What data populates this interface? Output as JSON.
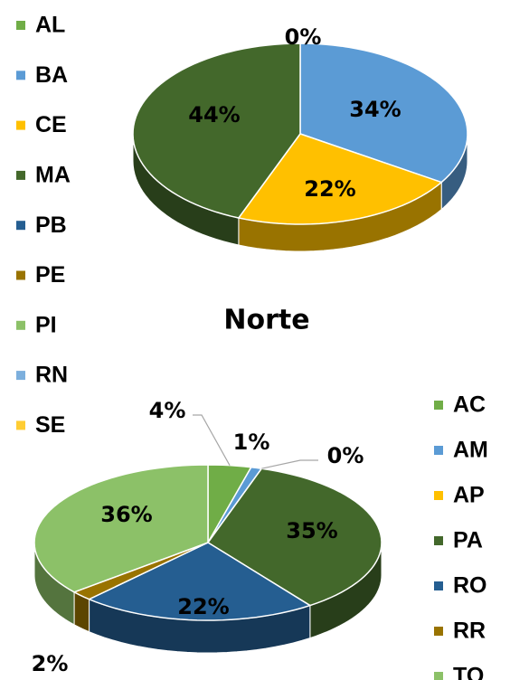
{
  "chart_data": [
    {
      "type": "pie",
      "categories": [
        "AL",
        "BA",
        "CE",
        "MA",
        "PB",
        "PE",
        "PI",
        "RN",
        "SE"
      ],
      "values": [
        0,
        34,
        22,
        44,
        null,
        null,
        null,
        null,
        null
      ],
      "value_labels": [
        "0%",
        "34%",
        "22%",
        "44%",
        null,
        null,
        null,
        null,
        null
      ],
      "colors": [
        "#70ad47",
        "#5b9bd5",
        "#ffc000",
        "#43682b",
        "#255e91",
        "#997300",
        "#8cc168",
        "#7cafdd",
        "#ffcd33"
      ],
      "legend": "left"
    },
    {
      "type": "pie",
      "title": "Norte",
      "categories": [
        "AC",
        "AM",
        "AP",
        "PA",
        "RO",
        "RR",
        "TO"
      ],
      "values": [
        4,
        1,
        0,
        35,
        22,
        2,
        36
      ],
      "value_labels": [
        "4%",
        "1%",
        "0%",
        "35%",
        "22%",
        "2%",
        "36%"
      ],
      "colors": [
        "#70ad47",
        "#5b9bd5",
        "#ffc000",
        "#43682b",
        "#255e91",
        "#997300",
        "#8cc168"
      ],
      "legend": "right"
    }
  ]
}
